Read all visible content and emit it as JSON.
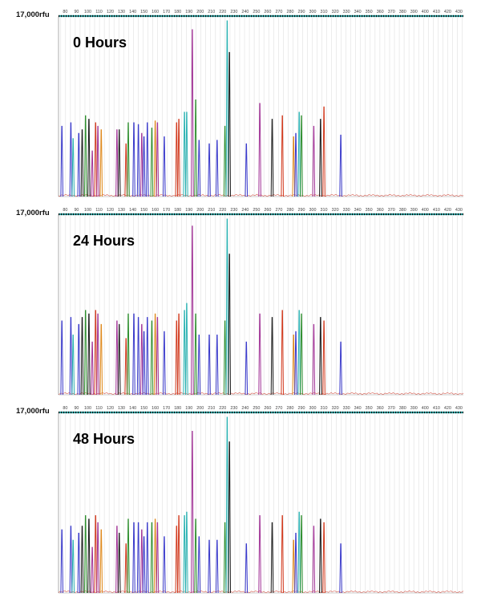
{
  "chart_data": {
    "type": "line",
    "description_axis": "fragment size (bp)",
    "x_ticks": [
      80,
      90,
      100,
      110,
      120,
      130,
      140,
      150,
      160,
      170,
      180,
      190,
      200,
      210,
      220,
      230,
      240,
      250,
      260,
      270,
      280,
      290,
      300,
      310,
      320,
      330,
      340,
      350,
      360,
      370,
      380,
      390,
      400,
      410,
      420,
      430
    ],
    "xlim": [
      74,
      434
    ],
    "y_max_label": "17,000rfu",
    "ylim": [
      0,
      17000
    ],
    "colors": {
      "blue": "#3a3acb",
      "green": "#2f8f2f",
      "red": "#d23a1e",
      "black": "#1a1a1a",
      "magenta": "#a23497",
      "cyan": "#2bb3b3",
      "orange": "#e08a1e"
    },
    "panels": [
      {
        "title": "0 Hours",
        "peaks": [
          {
            "x": 77,
            "h": 0.4,
            "c": "blue"
          },
          {
            "x": 85,
            "h": 0.42,
            "c": "blue"
          },
          {
            "x": 87,
            "h": 0.33,
            "c": "cyan"
          },
          {
            "x": 92,
            "h": 0.36,
            "c": "blue"
          },
          {
            "x": 95,
            "h": 0.38,
            "c": "black"
          },
          {
            "x": 98,
            "h": 0.46,
            "c": "green"
          },
          {
            "x": 101,
            "h": 0.44,
            "c": "black"
          },
          {
            "x": 104,
            "h": 0.26,
            "c": "magenta"
          },
          {
            "x": 107,
            "h": 0.42,
            "c": "red"
          },
          {
            "x": 109,
            "h": 0.4,
            "c": "magenta"
          },
          {
            "x": 112,
            "h": 0.38,
            "c": "orange"
          },
          {
            "x": 126,
            "h": 0.38,
            "c": "magenta"
          },
          {
            "x": 128,
            "h": 0.38,
            "c": "black"
          },
          {
            "x": 134,
            "h": 0.3,
            "c": "red"
          },
          {
            "x": 136,
            "h": 0.42,
            "c": "green"
          },
          {
            "x": 141,
            "h": 0.42,
            "c": "blue"
          },
          {
            "x": 145,
            "h": 0.41,
            "c": "blue"
          },
          {
            "x": 148,
            "h": 0.36,
            "c": "magenta"
          },
          {
            "x": 150,
            "h": 0.34,
            "c": "blue"
          },
          {
            "x": 153,
            "h": 0.42,
            "c": "blue"
          },
          {
            "x": 157,
            "h": 0.39,
            "c": "green"
          },
          {
            "x": 160,
            "h": 0.43,
            "c": "orange"
          },
          {
            "x": 162,
            "h": 0.42,
            "c": "magenta"
          },
          {
            "x": 168,
            "h": 0.34,
            "c": "blue"
          },
          {
            "x": 179,
            "h": 0.42,
            "c": "red"
          },
          {
            "x": 181,
            "h": 0.44,
            "c": "red"
          },
          {
            "x": 186,
            "h": 0.48,
            "c": "cyan"
          },
          {
            "x": 188,
            "h": 0.48,
            "c": "cyan"
          },
          {
            "x": 193,
            "h": 0.95,
            "c": "magenta"
          },
          {
            "x": 196,
            "h": 0.55,
            "c": "green"
          },
          {
            "x": 199,
            "h": 0.32,
            "c": "blue"
          },
          {
            "x": 208,
            "h": 0.3,
            "c": "blue"
          },
          {
            "x": 215,
            "h": 0.32,
            "c": "blue"
          },
          {
            "x": 222,
            "h": 0.4,
            "c": "green"
          },
          {
            "x": 224,
            "h": 1.0,
            "c": "cyan"
          },
          {
            "x": 226,
            "h": 0.82,
            "c": "black"
          },
          {
            "x": 241,
            "h": 0.3,
            "c": "blue"
          },
          {
            "x": 253,
            "h": 0.53,
            "c": "magenta"
          },
          {
            "x": 264,
            "h": 0.44,
            "c": "black"
          },
          {
            "x": 273,
            "h": 0.46,
            "c": "red"
          },
          {
            "x": 283,
            "h": 0.34,
            "c": "orange"
          },
          {
            "x": 285,
            "h": 0.36,
            "c": "blue"
          },
          {
            "x": 288,
            "h": 0.48,
            "c": "cyan"
          },
          {
            "x": 290,
            "h": 0.46,
            "c": "green"
          },
          {
            "x": 301,
            "h": 0.4,
            "c": "magenta"
          },
          {
            "x": 307,
            "h": 0.44,
            "c": "black"
          },
          {
            "x": 310,
            "h": 0.51,
            "c": "red"
          },
          {
            "x": 325,
            "h": 0.35,
            "c": "blue"
          }
        ]
      },
      {
        "title": "24 Hours",
        "peaks": [
          {
            "x": 77,
            "h": 0.42,
            "c": "blue"
          },
          {
            "x": 85,
            "h": 0.44,
            "c": "blue"
          },
          {
            "x": 87,
            "h": 0.34,
            "c": "cyan"
          },
          {
            "x": 92,
            "h": 0.4,
            "c": "blue"
          },
          {
            "x": 95,
            "h": 0.44,
            "c": "black"
          },
          {
            "x": 98,
            "h": 0.48,
            "c": "green"
          },
          {
            "x": 101,
            "h": 0.46,
            "c": "black"
          },
          {
            "x": 104,
            "h": 0.3,
            "c": "magenta"
          },
          {
            "x": 107,
            "h": 0.48,
            "c": "red"
          },
          {
            "x": 109,
            "h": 0.46,
            "c": "magenta"
          },
          {
            "x": 112,
            "h": 0.4,
            "c": "orange"
          },
          {
            "x": 126,
            "h": 0.42,
            "c": "magenta"
          },
          {
            "x": 128,
            "h": 0.4,
            "c": "black"
          },
          {
            "x": 134,
            "h": 0.32,
            "c": "red"
          },
          {
            "x": 136,
            "h": 0.46,
            "c": "green"
          },
          {
            "x": 141,
            "h": 0.46,
            "c": "blue"
          },
          {
            "x": 145,
            "h": 0.44,
            "c": "blue"
          },
          {
            "x": 148,
            "h": 0.4,
            "c": "magenta"
          },
          {
            "x": 150,
            "h": 0.36,
            "c": "blue"
          },
          {
            "x": 153,
            "h": 0.44,
            "c": "blue"
          },
          {
            "x": 157,
            "h": 0.42,
            "c": "green"
          },
          {
            "x": 160,
            "h": 0.46,
            "c": "orange"
          },
          {
            "x": 162,
            "h": 0.44,
            "c": "magenta"
          },
          {
            "x": 168,
            "h": 0.36,
            "c": "blue"
          },
          {
            "x": 179,
            "h": 0.42,
            "c": "red"
          },
          {
            "x": 181,
            "h": 0.46,
            "c": "red"
          },
          {
            "x": 186,
            "h": 0.48,
            "c": "cyan"
          },
          {
            "x": 188,
            "h": 0.52,
            "c": "cyan"
          },
          {
            "x": 193,
            "h": 0.96,
            "c": "magenta"
          },
          {
            "x": 196,
            "h": 0.46,
            "c": "green"
          },
          {
            "x": 199,
            "h": 0.34,
            "c": "blue"
          },
          {
            "x": 208,
            "h": 0.34,
            "c": "blue"
          },
          {
            "x": 215,
            "h": 0.34,
            "c": "blue"
          },
          {
            "x": 222,
            "h": 0.42,
            "c": "green"
          },
          {
            "x": 224,
            "h": 1.0,
            "c": "cyan"
          },
          {
            "x": 226,
            "h": 0.8,
            "c": "black"
          },
          {
            "x": 241,
            "h": 0.3,
            "c": "blue"
          },
          {
            "x": 253,
            "h": 0.46,
            "c": "magenta"
          },
          {
            "x": 264,
            "h": 0.44,
            "c": "black"
          },
          {
            "x": 273,
            "h": 0.48,
            "c": "red"
          },
          {
            "x": 283,
            "h": 0.34,
            "c": "orange"
          },
          {
            "x": 285,
            "h": 0.36,
            "c": "blue"
          },
          {
            "x": 288,
            "h": 0.48,
            "c": "cyan"
          },
          {
            "x": 290,
            "h": 0.46,
            "c": "green"
          },
          {
            "x": 301,
            "h": 0.4,
            "c": "magenta"
          },
          {
            "x": 307,
            "h": 0.44,
            "c": "black"
          },
          {
            "x": 310,
            "h": 0.42,
            "c": "red"
          },
          {
            "x": 325,
            "h": 0.3,
            "c": "blue"
          }
        ]
      },
      {
        "title": "48 Hours",
        "peaks": [
          {
            "x": 77,
            "h": 0.36,
            "c": "blue"
          },
          {
            "x": 85,
            "h": 0.38,
            "c": "blue"
          },
          {
            "x": 87,
            "h": 0.3,
            "c": "cyan"
          },
          {
            "x": 92,
            "h": 0.34,
            "c": "blue"
          },
          {
            "x": 95,
            "h": 0.38,
            "c": "black"
          },
          {
            "x": 98,
            "h": 0.44,
            "c": "green"
          },
          {
            "x": 101,
            "h": 0.42,
            "c": "black"
          },
          {
            "x": 104,
            "h": 0.26,
            "c": "magenta"
          },
          {
            "x": 107,
            "h": 0.44,
            "c": "red"
          },
          {
            "x": 109,
            "h": 0.4,
            "c": "magenta"
          },
          {
            "x": 112,
            "h": 0.36,
            "c": "orange"
          },
          {
            "x": 126,
            "h": 0.38,
            "c": "magenta"
          },
          {
            "x": 128,
            "h": 0.34,
            "c": "black"
          },
          {
            "x": 134,
            "h": 0.28,
            "c": "red"
          },
          {
            "x": 136,
            "h": 0.42,
            "c": "green"
          },
          {
            "x": 141,
            "h": 0.4,
            "c": "blue"
          },
          {
            "x": 145,
            "h": 0.4,
            "c": "blue"
          },
          {
            "x": 148,
            "h": 0.36,
            "c": "magenta"
          },
          {
            "x": 150,
            "h": 0.32,
            "c": "blue"
          },
          {
            "x": 153,
            "h": 0.4,
            "c": "blue"
          },
          {
            "x": 157,
            "h": 0.4,
            "c": "green"
          },
          {
            "x": 160,
            "h": 0.42,
            "c": "orange"
          },
          {
            "x": 162,
            "h": 0.4,
            "c": "magenta"
          },
          {
            "x": 168,
            "h": 0.32,
            "c": "blue"
          },
          {
            "x": 179,
            "h": 0.38,
            "c": "red"
          },
          {
            "x": 181,
            "h": 0.44,
            "c": "red"
          },
          {
            "x": 186,
            "h": 0.44,
            "c": "cyan"
          },
          {
            "x": 188,
            "h": 0.46,
            "c": "cyan"
          },
          {
            "x": 193,
            "h": 0.92,
            "c": "magenta"
          },
          {
            "x": 196,
            "h": 0.42,
            "c": "green"
          },
          {
            "x": 199,
            "h": 0.32,
            "c": "blue"
          },
          {
            "x": 208,
            "h": 0.3,
            "c": "blue"
          },
          {
            "x": 215,
            "h": 0.3,
            "c": "blue"
          },
          {
            "x": 222,
            "h": 0.4,
            "c": "green"
          },
          {
            "x": 224,
            "h": 1.0,
            "c": "cyan"
          },
          {
            "x": 226,
            "h": 0.86,
            "c": "black"
          },
          {
            "x": 241,
            "h": 0.28,
            "c": "blue"
          },
          {
            "x": 253,
            "h": 0.44,
            "c": "magenta"
          },
          {
            "x": 264,
            "h": 0.4,
            "c": "black"
          },
          {
            "x": 273,
            "h": 0.44,
            "c": "red"
          },
          {
            "x": 283,
            "h": 0.3,
            "c": "orange"
          },
          {
            "x": 285,
            "h": 0.34,
            "c": "blue"
          },
          {
            "x": 288,
            "h": 0.46,
            "c": "cyan"
          },
          {
            "x": 290,
            "h": 0.44,
            "c": "green"
          },
          {
            "x": 301,
            "h": 0.38,
            "c": "magenta"
          },
          {
            "x": 307,
            "h": 0.42,
            "c": "black"
          },
          {
            "x": 310,
            "h": 0.4,
            "c": "red"
          },
          {
            "x": 325,
            "h": 0.28,
            "c": "blue"
          }
        ]
      }
    ]
  }
}
